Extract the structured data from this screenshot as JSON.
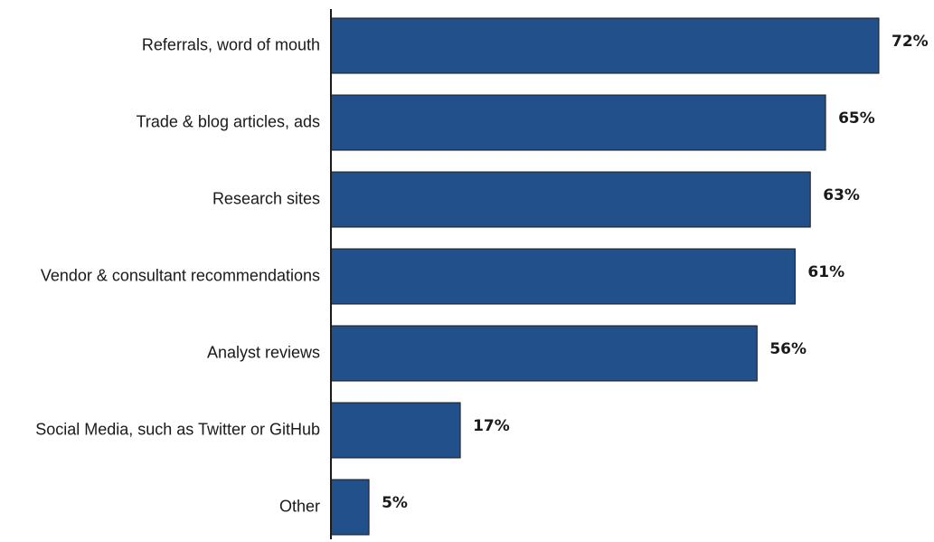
{
  "chart_data": {
    "type": "bar",
    "orientation": "horizontal",
    "categories": [
      "Referrals, word of mouth",
      "Trade & blog articles, ads",
      "Research sites",
      "Vendor & consultant recommendations",
      "Analyst reviews",
      "Social Media, such as Twitter or GitHub",
      "Other"
    ],
    "values": [
      72,
      65,
      63,
      61,
      56,
      17,
      5
    ],
    "value_labels": [
      "72%",
      "65%",
      "63%",
      "61%",
      "56%",
      "17%",
      "5%"
    ],
    "unit": "%",
    "title": "",
    "xlabel": "",
    "ylabel": "",
    "xlim": [
      0,
      72
    ],
    "grid": false,
    "legend": "none",
    "bar_color": "#21508a",
    "bar_edge_color": "#1a1a1a"
  }
}
